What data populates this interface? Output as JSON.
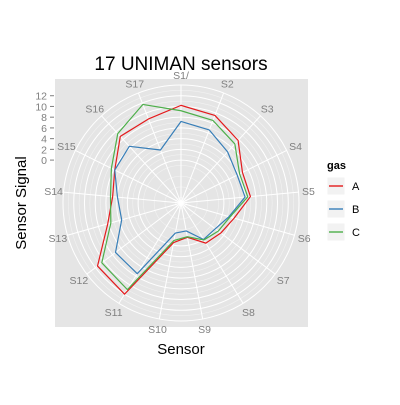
{
  "chart_data": {
    "type": "line",
    "subtype": "polar",
    "title": "17 UNIMAN sensors",
    "xlabel": "Sensor",
    "ylabel": "Sensor Signal",
    "categories": [
      "S1",
      "S2",
      "S3",
      "S4",
      "S5",
      "S6",
      "S7",
      "S8",
      "S9",
      "S10",
      "S11",
      "S12",
      "S13",
      "S14",
      "S15",
      "S16",
      "S17"
    ],
    "category_labels": [
      "S1/",
      "S2",
      "S3",
      "S4",
      "S5",
      "S6",
      "S7",
      "S8",
      "S9",
      "S10",
      "S11",
      "S12",
      "S13",
      "S14",
      "S15",
      "S16",
      "S17"
    ],
    "y_ticks": [
      0,
      2,
      4,
      6,
      8,
      10,
      12
    ],
    "ylim": [
      -8,
      14
    ],
    "grid": true,
    "legend": {
      "title": "gas",
      "position": "right"
    },
    "series": [
      {
        "name": "A",
        "color": "#e41a1c",
        "values": [
          10.2,
          9.5,
          7.8,
          4.8,
          5.0,
          2.3,
          1.3,
          0.8,
          -1.5,
          -0.5,
          12.0,
          11.5,
          6.2,
          4.8,
          5.8,
          8.8,
          8.8
        ]
      },
      {
        "name": "B",
        "color": "#377eb8",
        "values": [
          7.2,
          6.6,
          4.9,
          3.7,
          4.0,
          1.3,
          0.0,
          0.0,
          -2.7,
          -2.3,
          7.5,
          7.3,
          3.5,
          3.9,
          5.8,
          6.3,
          2.6
        ]
      },
      {
        "name": "C",
        "color": "#4daf4a",
        "values": [
          9.2,
          8.5,
          6.9,
          4.2,
          4.5,
          1.5,
          0.7,
          0.1,
          -1.6,
          -0.9,
          11.0,
          10.5,
          5.6,
          5.2,
          6.5,
          9.5,
          11.7
        ]
      }
    ]
  }
}
